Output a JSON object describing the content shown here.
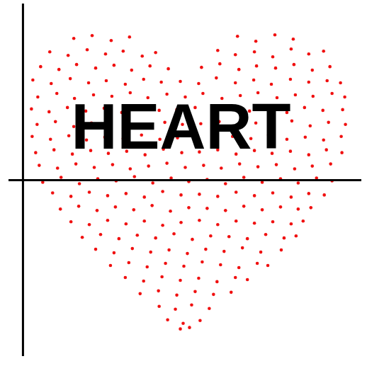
{
  "chart_data": {
    "type": "scatter",
    "color": "#f01010",
    "xlim": [
      -2,
      48
    ],
    "ylim": [
      -25,
      25
    ],
    "tick_labels": false,
    "annotations": [
      {
        "text": "HEART",
        "x": 22.4,
        "y": 7.4
      }
    ],
    "x": [
      7.2,
      9.8,
      12.5,
      15.1,
      30.4,
      33.0,
      35.7,
      38.3,
      3.8,
      6.4,
      9.1,
      11.7,
      14.2,
      16.9,
      18.8,
      27.6,
      30.1,
      32.8,
      35.4,
      38.0,
      40.5,
      42.6,
      2.5,
      5.1,
      7.6,
      10.3,
      12.9,
      15.4,
      18.0,
      20.6,
      25.3,
      27.9,
      30.6,
      33.1,
      35.8,
      38.4,
      41.0,
      43.5,
      1.4,
      4.0,
      6.7,
      9.3,
      11.8,
      14.5,
      17.1,
      19.6,
      22.3,
      24.9,
      27.4,
      30.1,
      32.7,
      35.2,
      37.9,
      40.5,
      43.1,
      45.0,
      2.1,
      4.8,
      7.3,
      10.0,
      12.6,
      15.2,
      17.7,
      20.4,
      23.0,
      25.5,
      28.2,
      30.8,
      33.3,
      36.0,
      38.6,
      41.1,
      43.8,
      45.6,
      1.2,
      3.7,
      6.3,
      8.9,
      11.5,
      14.0,
      16.6,
      19.3,
      21.8,
      24.4,
      27.0,
      29.6,
      32.1,
      34.8,
      37.4,
      39.9,
      42.5,
      45.3,
      2.0,
      4.6,
      7.2,
      9.7,
      12.3,
      14.9,
      17.5,
      20.1,
      22.6,
      25.2,
      27.8,
      30.4,
      33.0,
      35.5,
      38.1,
      40.7,
      43.3,
      45.7,
      1.3,
      3.9,
      6.5,
      9.0,
      11.6,
      14.2,
      16.8,
      19.4,
      21.9,
      24.5,
      27.1,
      29.7,
      32.3,
      34.8,
      37.4,
      40.0,
      42.6,
      45.1,
      1.8,
      4.4,
      7.0,
      9.6,
      12.1,
      14.7,
      17.3,
      19.9,
      22.5,
      25.0,
      27.6,
      30.2,
      32.8,
      35.3,
      37.9,
      40.5,
      43.0,
      45.2,
      2.3,
      4.9,
      7.5,
      10.1,
      12.7,
      15.2,
      17.8,
      20.4,
      23.0,
      25.6,
      28.1,
      30.7,
      33.3,
      35.9,
      38.5,
      41.0,
      43.6,
      2.8,
      5.4,
      8.0,
      10.6,
      13.2,
      15.8,
      18.4,
      21.0,
      23.5,
      26.1,
      28.7,
      31.3,
      33.9,
      36.5,
      39.0,
      41.6,
      43.8,
      4.2,
      6.8,
      9.4,
      12.0,
      14.6,
      17.2,
      19.8,
      22.4,
      25.0,
      27.6,
      30.2,
      32.8,
      35.4,
      38.0,
      40.5,
      42.7,
      5.3,
      7.9,
      10.5,
      13.1,
      15.7,
      18.3,
      20.9,
      23.5,
      26.1,
      28.7,
      31.3,
      33.9,
      36.5,
      39.0,
      40.8,
      6.8,
      9.4,
      12.0,
      14.6,
      17.2,
      19.8,
      22.4,
      25.0,
      27.6,
      30.2,
      32.8,
      35.4,
      38.0,
      39.7,
      8.4,
      11.0,
      13.6,
      16.2,
      18.8,
      21.4,
      24.0,
      26.6,
      29.2,
      31.8,
      34.4,
      37.0,
      38.7,
      10.3,
      12.9,
      15.5,
      18.1,
      20.7,
      23.3,
      25.9,
      28.5,
      31.1,
      33.7,
      36.6,
      12.4,
      15.0,
      17.6,
      20.2,
      22.8,
      25.4,
      28.0,
      30.6,
      33.2,
      34.7,
      14.5,
      17.1,
      19.7,
      22.3,
      24.9,
      27.5,
      30.1,
      31.8,
      16.6,
      19.2,
      21.8,
      24.4,
      27.0,
      29.5,
      19.3,
      21.6,
      23.9,
      26.4,
      20.5,
      22.7,
      25.1,
      22.3,
      23.6
    ],
    "values": [
      20.1,
      20.5,
      19.8,
      20.3,
      20.4,
      19.7,
      20.6,
      20.0,
      18.2,
      17.7,
      18.5,
      17.9,
      18.3,
      17.6,
      18.1,
      18.4,
      17.8,
      18.2,
      17.5,
      18.6,
      17.9,
      18.3,
      16.1,
      15.7,
      16.4,
      15.9,
      16.3,
      15.6,
      16.2,
      15.8,
      16.0,
      16.5,
      15.7,
      16.2,
      15.9,
      16.4,
      15.6,
      16.1,
      14.2,
      13.7,
      14.4,
      13.8,
      14.1,
      13.6,
      14.3,
      13.9,
      14.0,
      13.7,
      14.5,
      13.8,
      14.2,
      13.6,
      14.3,
      13.9,
      14.1,
      13.8,
      11.8,
      12.3,
      11.6,
      12.1,
      11.9,
      12.4,
      11.7,
      12.2,
      11.8,
      12.3,
      11.6,
      12.0,
      12.4,
      11.7,
      12.1,
      11.9,
      12.3,
      11.8,
      10.1,
      9.7,
      10.3,
      9.8,
      10.2,
      9.6,
      10.4,
      9.9,
      10.0,
      10.3,
      9.7,
      10.2,
      9.8,
      10.1,
      9.6,
      10.3,
      9.9,
      10.0,
      7.9,
      8.3,
      7.6,
      8.1,
      7.8,
      8.4,
      7.7,
      8.2,
      7.9,
      8.0,
      8.3,
      7.6,
      8.1,
      7.8,
      8.4,
      7.7,
      8.2,
      7.9,
      6.2,
      5.8,
      6.3,
      5.7,
      6.1,
      5.9,
      6.4,
      5.8,
      6.0,
      6.3,
      5.7,
      6.2,
      5.9,
      6.4,
      5.8,
      6.1,
      5.7,
      6.2,
      3.9,
      4.3,
      3.7,
      4.2,
      3.8,
      4.1,
      3.6,
      4.4,
      3.9,
      4.0,
      4.3,
      3.7,
      4.2,
      3.8,
      4.1,
      3.6,
      4.3,
      3.9,
      2.1,
      1.7,
      2.3,
      1.8,
      2.2,
      1.6,
      2.0,
      2.4,
      1.8,
      2.1,
      1.7,
      2.3,
      1.9,
      2.2,
      1.6,
      2.0,
      2.3,
      -0.3,
      0.4,
      -0.5,
      0.2,
      -0.1,
      0.5,
      -0.4,
      0.3,
      -0.2,
      0.1,
      -0.5,
      0.4,
      -0.3,
      0.2,
      -0.4,
      0.3,
      -0.1,
      -1.8,
      -2.3,
      -1.7,
      -2.2,
      -1.9,
      -2.4,
      -1.6,
      -2.1,
      -2.0,
      -2.3,
      -1.7,
      -2.2,
      -1.8,
      -2.4,
      -1.9,
      -2.1,
      -4.1,
      -3.7,
      -4.3,
      -3.8,
      -4.2,
      -3.6,
      -4.4,
      -3.9,
      -4.0,
      -4.3,
      -3.7,
      -4.2,
      -3.8,
      -4.1,
      -3.9,
      -5.9,
      -6.3,
      -5.7,
      -6.2,
      -5.8,
      -6.4,
      -6.0,
      -5.7,
      -6.3,
      -5.8,
      -6.1,
      -5.9,
      -6.2,
      -5.8,
      -8.1,
      -7.7,
      -8.3,
      -7.8,
      -8.2,
      -7.6,
      -8.4,
      -7.9,
      -8.0,
      -8.3,
      -7.7,
      -8.2,
      -7.9,
      -9.8,
      -10.3,
      -9.7,
      -10.2,
      -9.9,
      -10.4,
      -9.8,
      -10.1,
      -9.6,
      -10.2,
      -9.9,
      -12.1,
      -11.7,
      -12.3,
      -11.8,
      -12.2,
      -11.6,
      -12.0,
      -12.4,
      -11.8,
      -12.1,
      -13.8,
      -14.3,
      -13.7,
      -14.2,
      -13.9,
      -14.4,
      -13.8,
      -14.1,
      -16.1,
      -15.7,
      -16.3,
      -15.8,
      -16.2,
      -15.9,
      -17.9,
      -18.3,
      -17.7,
      -18.2,
      -19.8,
      -20.3,
      -19.9,
      -21.1,
      -20.9
    ]
  }
}
